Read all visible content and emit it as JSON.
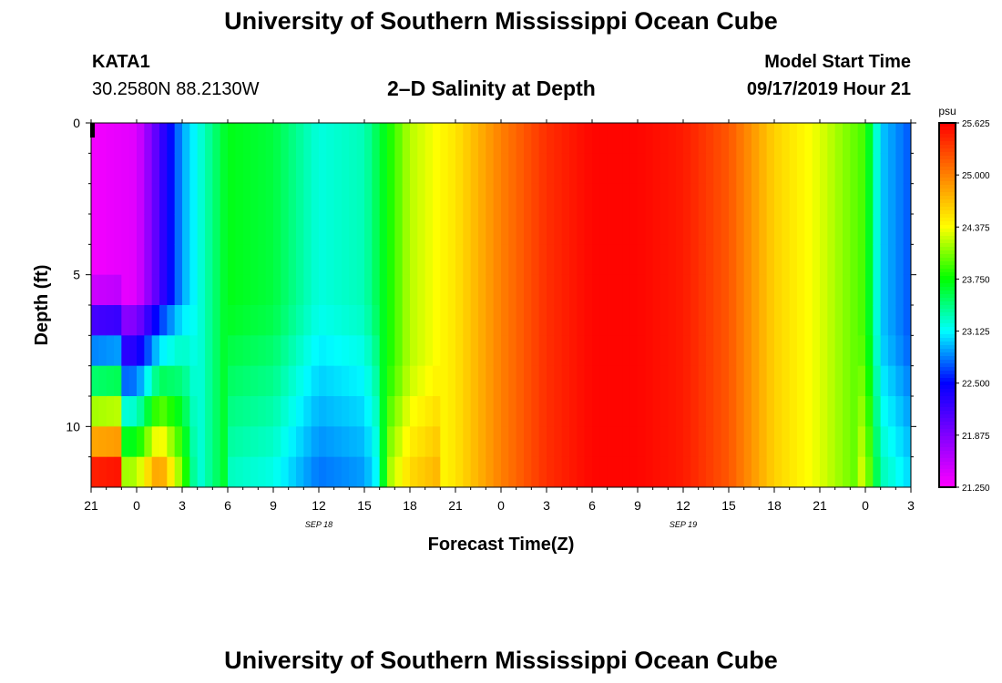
{
  "header": {
    "title_top": "University of Southern Mississippi Ocean Cube",
    "title_bottom": "University of Southern Mississippi Ocean Cube",
    "station": "KATA1",
    "coords": "30.2580N 88.2130W",
    "plot_title": "2–D Salinity at Depth",
    "model_start_label": "Model Start Time",
    "model_start_value": "09/17/2019 Hour 21"
  },
  "chart_data": {
    "type": "heatmap",
    "title": "2–D Salinity at Depth",
    "xlabel": "Forecast Time(Z)",
    "ylabel": "Depth (ft)",
    "x_tick_labels": [
      "21",
      "0",
      "3",
      "6",
      "9",
      "12",
      "15",
      "18",
      "21",
      "0",
      "3",
      "6",
      "9",
      "12",
      "15",
      "18",
      "21",
      "0",
      "3"
    ],
    "date_labels": [
      {
        "text": "SEP 18",
        "at_hour": 15
      },
      {
        "text": "SEP 19",
        "at_hour": 39
      }
    ],
    "y_tick_labels": [
      "0",
      "5",
      "10"
    ],
    "y_ticks": [
      0,
      5,
      10
    ],
    "xlim_hours": [
      0,
      54
    ],
    "ylim_ft": [
      0,
      12
    ],
    "colorbar": {
      "unit": "psu",
      "min": 21.25,
      "max": 25.625,
      "tick_labels": [
        "25.625",
        "25.000",
        "24.375",
        "23.750",
        "23.125",
        "22.500",
        "21.875",
        "21.250"
      ]
    },
    "colorscale": [
      "#ff00ff",
      "#8000ff",
      "#0000ff",
      "#00ffff",
      "#00ff00",
      "#ffff00",
      "#ff8000",
      "#ff0000"
    ],
    "salinity_profile_surface": {
      "hours": [
        0,
        3,
        6,
        9,
        12,
        15,
        18,
        21,
        24,
        27,
        30,
        33,
        36,
        39,
        42,
        45,
        48,
        51,
        52,
        54
      ],
      "psu": [
        21.3,
        21.4,
        22.9,
        23.7,
        23.6,
        23.2,
        23.3,
        24.2,
        24.5,
        25.0,
        25.4,
        25.6,
        25.6,
        25.5,
        25.2,
        24.6,
        24.3,
        23.9,
        23.0,
        22.7
      ]
    }
  }
}
